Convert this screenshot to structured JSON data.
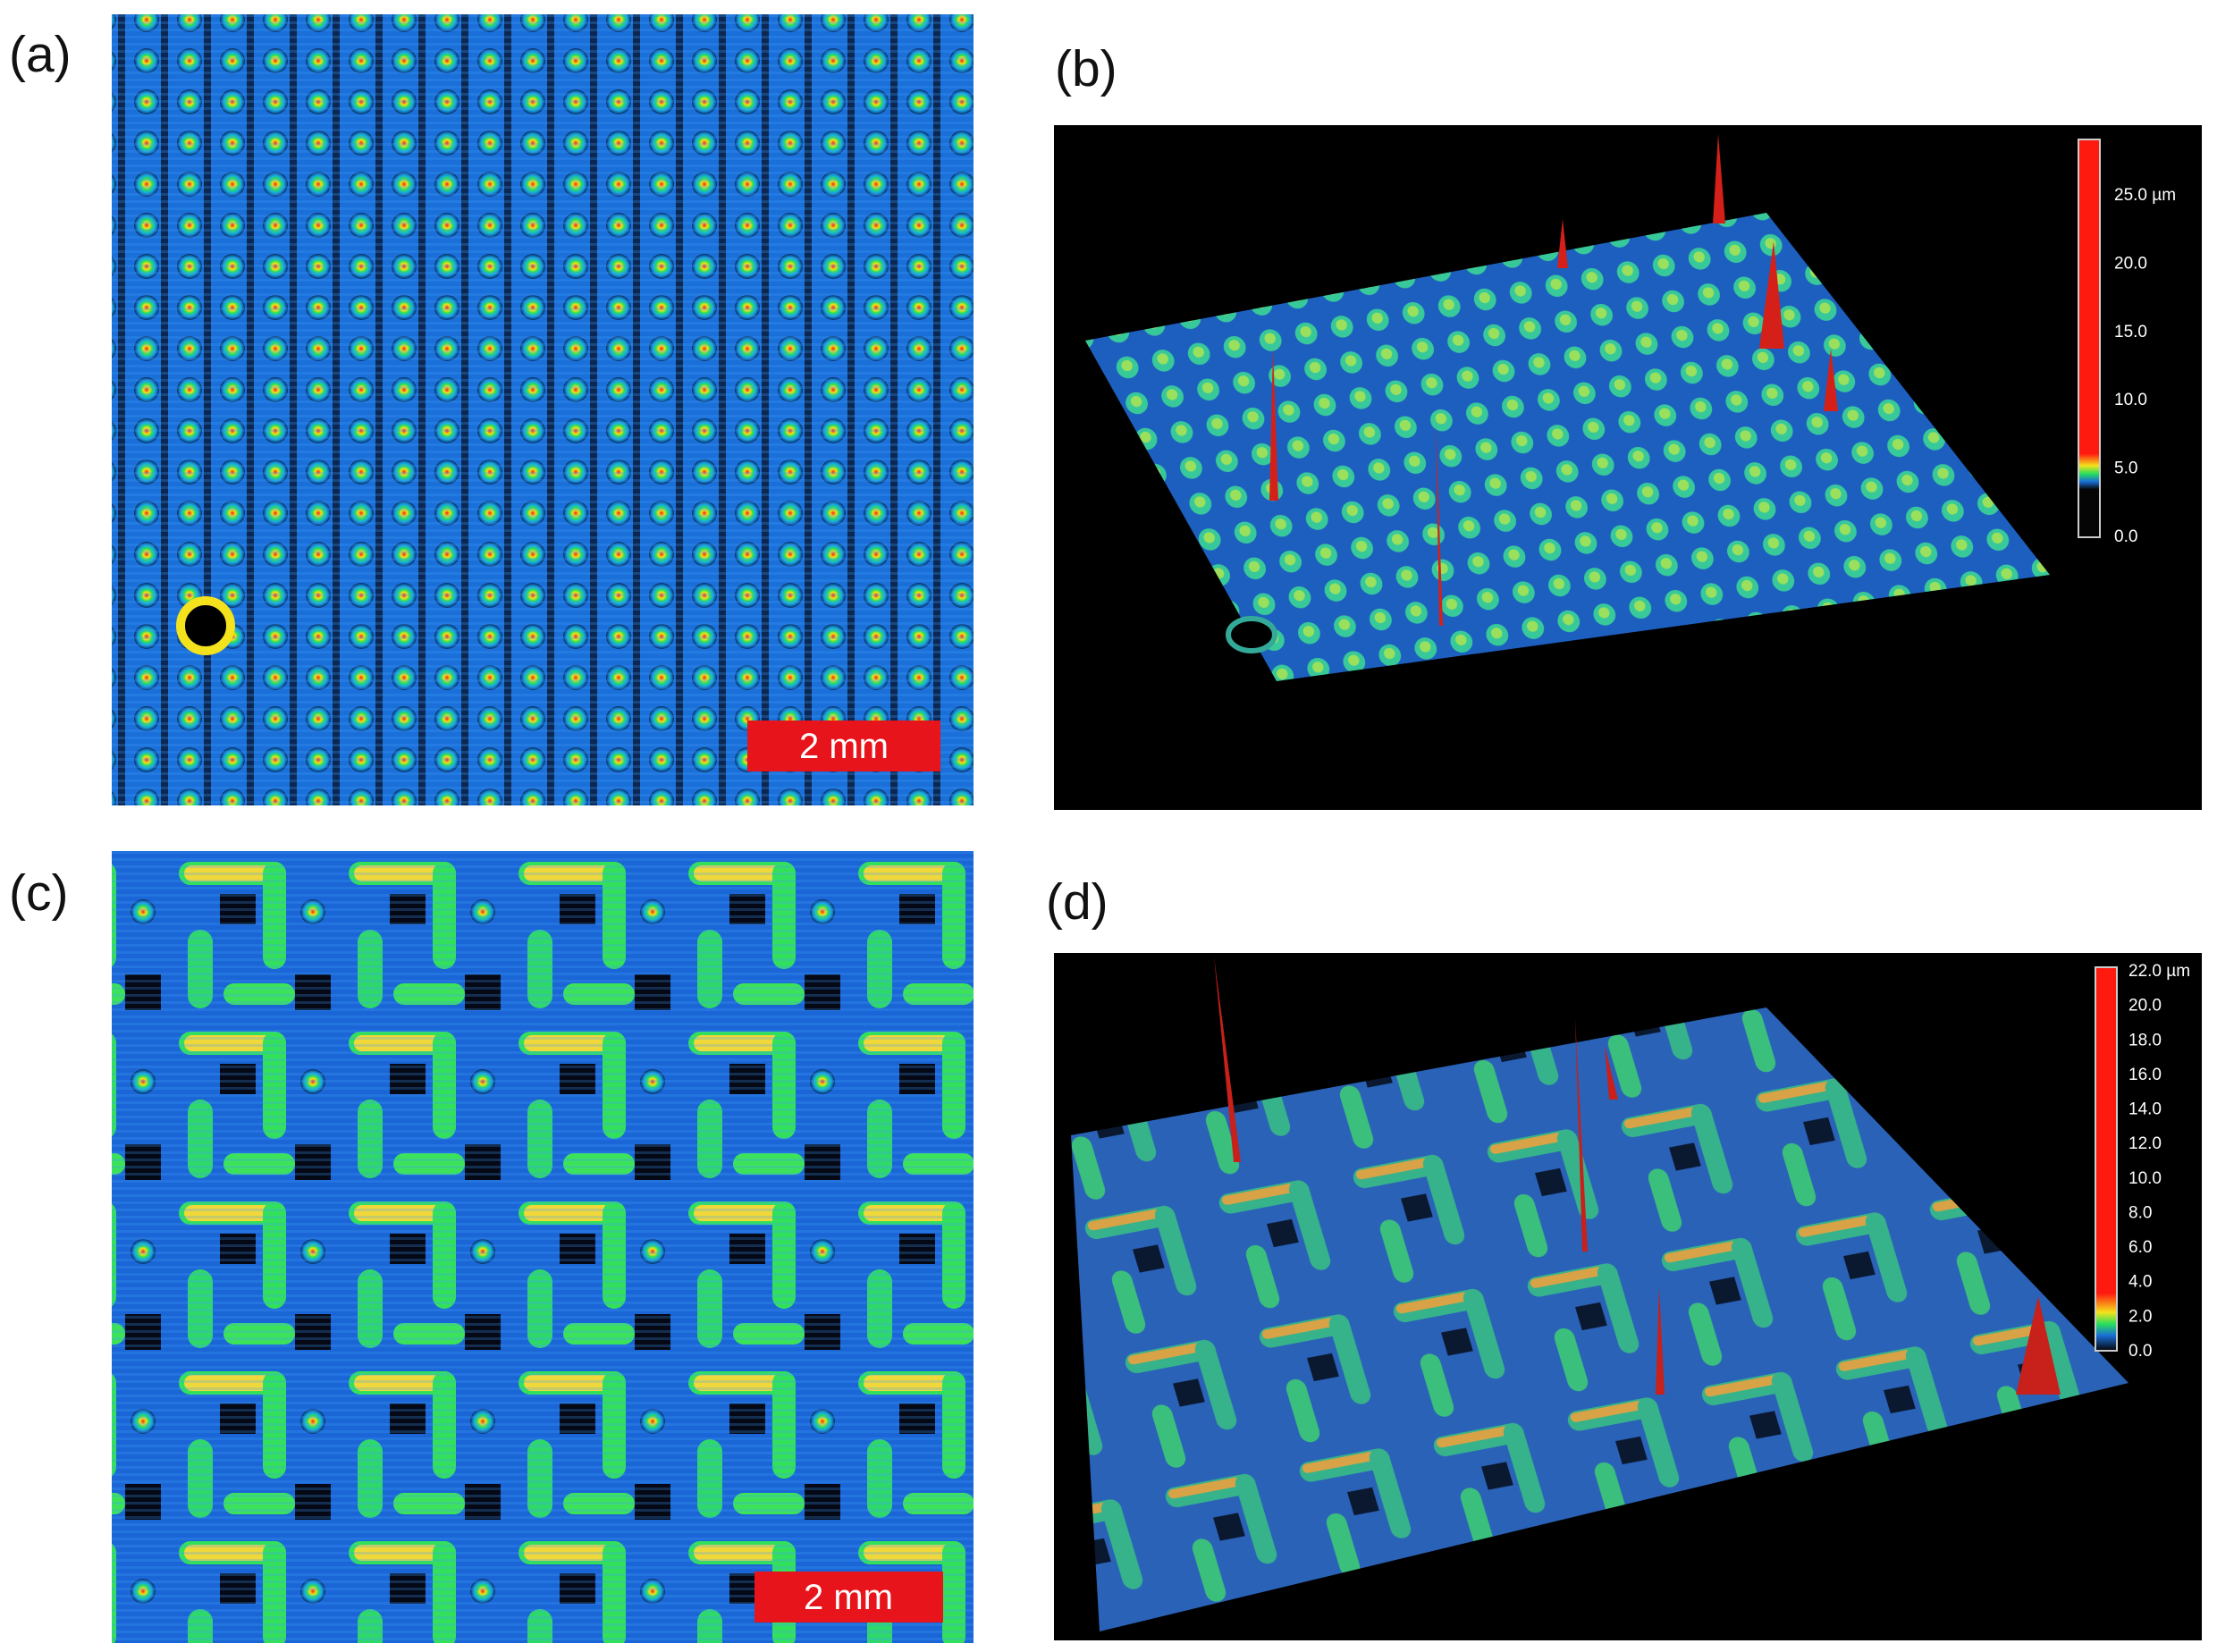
{
  "panels": [
    {
      "label": "(a)",
      "scale_bar": "2 mm"
    },
    {
      "label": "(b)",
      "colorbar": [
        "25.0 µm",
        "20.0",
        "15.0",
        "10.0",
        "5.0",
        "0.0"
      ]
    },
    {
      "label": "(c)",
      "scale_bar": "2 mm"
    },
    {
      "label": "(d)",
      "colorbar": [
        "22.0 µm",
        "20.0",
        "18.0",
        "16.0",
        "14.0",
        "12.0",
        "10.0",
        "8.0",
        "6.0",
        "4.0",
        "2.0",
        "0.0"
      ]
    }
  ]
}
